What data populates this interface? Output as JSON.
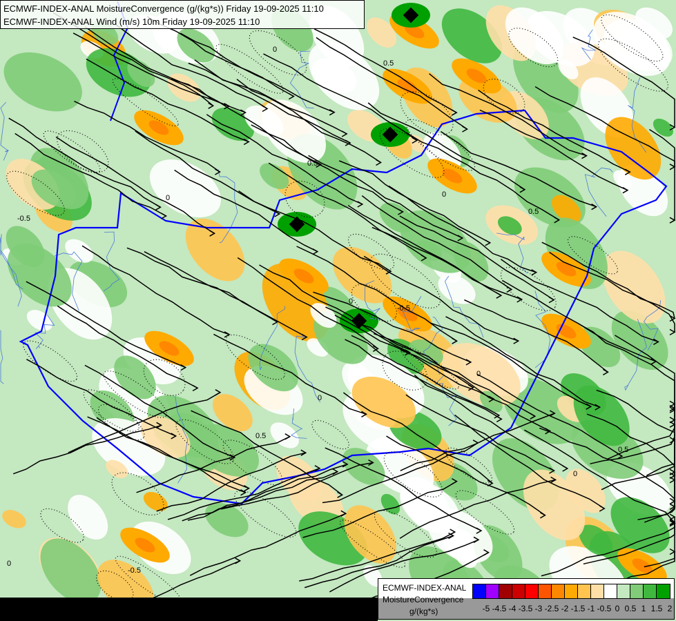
{
  "header": {
    "line1": "ECMWF-INDEX-ANAL MoistureConvergence (g/(kg*s)) Friday 19-09-2025 11:10",
    "line2": "ECMWF-INDEX-ANAL Wind (m/s) 10m Friday 19-09-2025 11:10"
  },
  "legend": {
    "model": "ECMWF-INDEX-ANAL",
    "parameter": "MoistureConvergence",
    "unit": "g/(kg*s)",
    "colors": [
      "#0000ff",
      "#a000ff",
      "#a00000",
      "#cc0000",
      "#ff0000",
      "#ff5500",
      "#ff8800",
      "#ffaa00",
      "#ffc450",
      "#ffdfa8",
      "#ffffff",
      "#c4e8c0",
      "#80cc78",
      "#40b840",
      "#00a000"
    ],
    "ticks": [
      "-5",
      "-4.5",
      "-4",
      "-3.5",
      "-3",
      "-2.5",
      "-2",
      "-1.5",
      "-1",
      "-0.5",
      "0",
      "0.5",
      "1",
      "1.5",
      "2"
    ]
  },
  "map": {
    "border_color": "#0000ff",
    "river_color": "#4a7ad8",
    "streamline_color": "#000000",
    "contour_labels": [
      "0",
      "0.5",
      "0",
      "-0.5",
      "0.5",
      "0",
      "0.5",
      "0",
      "-0.5",
      "0",
      "0.5",
      "0",
      "0",
      "0.5",
      "-0.5",
      "0"
    ]
  }
}
